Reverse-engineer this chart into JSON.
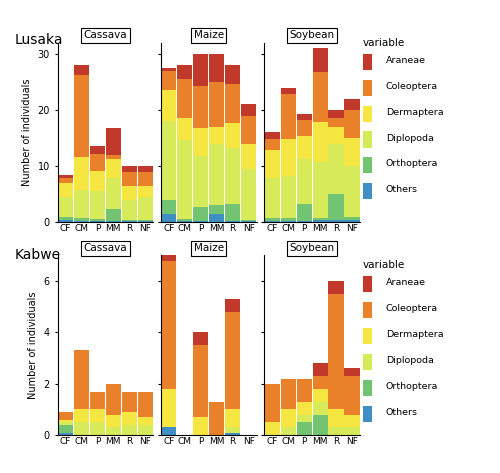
{
  "locations": [
    "Lusaka",
    "Kabwe"
  ],
  "crops": [
    "Cassava",
    "Maize",
    "Soybean"
  ],
  "treatments": [
    "CF",
    "CM",
    "P",
    "MM",
    "R",
    "NF"
  ],
  "variables": [
    "Others",
    "Orthoptera",
    "Diplopoda",
    "Dermaptera",
    "Coleoptera",
    "Araneae"
  ],
  "colors": {
    "Araneae": "#C1392B",
    "Coleoptera": "#E8812A",
    "Dermaptera": "#F5E642",
    "Diplopoda": "#D7EA5A",
    "Orthoptera": "#72C472",
    "Others": "#3F8FC4"
  },
  "lusaka": {
    "Cassava": {
      "CF": {
        "Others": 0.5,
        "Orthoptera": 0.5,
        "Diplopoda": 3.5,
        "Dermaptera": 2.5,
        "Coleoptera": 0.8,
        "Araneae": 0.7
      },
      "CM": {
        "Others": 0.3,
        "Orthoptera": 0.4,
        "Diplopoda": 5.0,
        "Dermaptera": 6.0,
        "Coleoptera": 14.5,
        "Araneae": 1.8
      },
      "P": {
        "Others": 0.2,
        "Orthoptera": 0.4,
        "Diplopoda": 5.0,
        "Dermaptera": 3.5,
        "Coleoptera": 3.0,
        "Araneae": 1.4
      },
      "MM": {
        "Others": 0.3,
        "Orthoptera": 2.0,
        "Diplopoda": 5.5,
        "Dermaptera": 3.5,
        "Coleoptera": 0.7,
        "Araneae": 4.8
      },
      "R": {
        "Others": 0.2,
        "Orthoptera": 0.3,
        "Diplopoda": 3.5,
        "Dermaptera": 2.5,
        "Coleoptera": 2.5,
        "Araneae": 1.0
      },
      "NF": {
        "Others": 0.2,
        "Orthoptera": 0.3,
        "Diplopoda": 4.0,
        "Dermaptera": 2.0,
        "Coleoptera": 2.5,
        "Araneae": 1.0
      }
    },
    "Maize": {
      "CF": {
        "Others": 1.5,
        "Orthoptera": 2.5,
        "Diplopoda": 14.0,
        "Dermaptera": 5.5,
        "Coleoptera": 3.5,
        "Araneae": 0.5
      },
      "CM": {
        "Others": 0.3,
        "Orthoptera": 0.3,
        "Diplopoda": 14.0,
        "Dermaptera": 4.0,
        "Coleoptera": 7.0,
        "Araneae": 2.4
      },
      "P": {
        "Others": 0.3,
        "Orthoptera": 2.5,
        "Diplopoda": 9.0,
        "Dermaptera": 5.0,
        "Coleoptera": 7.5,
        "Araneae": 5.7
      },
      "MM": {
        "Others": 1.5,
        "Orthoptera": 1.5,
        "Diplopoda": 11.0,
        "Dermaptera": 3.0,
        "Coleoptera": 8.0,
        "Araneae": 5.0
      },
      "R": {
        "Others": 0.2,
        "Orthoptera": 3.0,
        "Diplopoda": 10.0,
        "Dermaptera": 4.5,
        "Coleoptera": 7.0,
        "Araneae": 3.3
      },
      "NF": {
        "Others": 0.2,
        "Orthoptera": 0.3,
        "Diplopoda": 9.0,
        "Dermaptera": 4.5,
        "Coleoptera": 5.0,
        "Araneae": 2.0
      }
    },
    "Soybean": {
      "CF": {
        "Others": 0.3,
        "Orthoptera": 0.5,
        "Diplopoda": 7.0,
        "Dermaptera": 5.0,
        "Coleoptera": 2.0,
        "Araneae": 1.2
      },
      "CM": {
        "Others": 0.3,
        "Orthoptera": 0.5,
        "Diplopoda": 7.5,
        "Dermaptera": 6.5,
        "Coleoptera": 8.0,
        "Araneae": 1.2
      },
      "P": {
        "Others": 0.3,
        "Orthoptera": 3.0,
        "Diplopoda": 8.0,
        "Dermaptera": 4.0,
        "Coleoptera": 3.0,
        "Araneae": 1.0
      },
      "MM": {
        "Others": 0.5,
        "Orthoptera": 0.3,
        "Diplopoda": 10.0,
        "Dermaptera": 7.0,
        "Coleoptera": 9.0,
        "Araneae": 4.2
      },
      "R": {
        "Others": 0.5,
        "Orthoptera": 4.5,
        "Diplopoda": 9.0,
        "Dermaptera": 3.0,
        "Coleoptera": 1.5,
        "Araneae": 1.5
      },
      "NF": {
        "Others": 0.5,
        "Orthoptera": 0.5,
        "Diplopoda": 9.0,
        "Dermaptera": 5.0,
        "Coleoptera": 5.0,
        "Araneae": 2.0
      }
    }
  },
  "kabwe": {
    "Cassava": {
      "CF": {
        "Others": 0.1,
        "Orthoptera": 0.3,
        "Diplopoda": 0.1,
        "Dermaptera": 0.1,
        "Coleoptera": 0.3,
        "Araneae": 0.0
      },
      "CM": {
        "Others": 0.0,
        "Orthoptera": 0.0,
        "Diplopoda": 0.5,
        "Dermaptera": 0.5,
        "Coleoptera": 2.3,
        "Araneae": 0.0
      },
      "P": {
        "Others": 0.0,
        "Orthoptera": 0.0,
        "Diplopoda": 0.5,
        "Dermaptera": 0.5,
        "Coleoptera": 0.7,
        "Araneae": 0.0
      },
      "MM": {
        "Others": 0.0,
        "Orthoptera": 0.0,
        "Diplopoda": 0.3,
        "Dermaptera": 0.5,
        "Coleoptera": 1.2,
        "Araneae": 0.0
      },
      "R": {
        "Others": 0.0,
        "Orthoptera": 0.0,
        "Diplopoda": 0.4,
        "Dermaptera": 0.5,
        "Coleoptera": 0.8,
        "Araneae": 0.0
      },
      "NF": {
        "Others": 0.0,
        "Orthoptera": 0.0,
        "Diplopoda": 0.4,
        "Dermaptera": 0.3,
        "Coleoptera": 1.0,
        "Araneae": 0.0
      }
    },
    "Maize": {
      "CF": {
        "Others": 0.3,
        "Orthoptera": 0.0,
        "Diplopoda": 0.0,
        "Dermaptera": 1.5,
        "Coleoptera": 5.0,
        "Araneae": 0.2
      },
      "CM": {
        "Others": 0.0,
        "Orthoptera": 0.0,
        "Diplopoda": 0.0,
        "Dermaptera": 0.0,
        "Coleoptera": 0.0,
        "Araneae": 0.0
      },
      "P": {
        "Others": 0.0,
        "Orthoptera": 0.0,
        "Diplopoda": 0.0,
        "Dermaptera": 0.7,
        "Coleoptera": 2.8,
        "Araneae": 0.5
      },
      "MM": {
        "Others": 0.0,
        "Orthoptera": 0.0,
        "Diplopoda": 0.0,
        "Dermaptera": 0.0,
        "Coleoptera": 1.3,
        "Araneae": 0.0
      },
      "R": {
        "Others": 0.1,
        "Orthoptera": 0.0,
        "Diplopoda": 0.2,
        "Dermaptera": 0.7,
        "Coleoptera": 3.8,
        "Araneae": 0.5
      },
      "NF": {
        "Others": 0.0,
        "Orthoptera": 0.0,
        "Diplopoda": 0.0,
        "Dermaptera": 0.0,
        "Coleoptera": 0.0,
        "Araneae": 0.0
      }
    },
    "Soybean": {
      "CF": {
        "Others": 0.0,
        "Orthoptera": 0.0,
        "Diplopoda": 0.0,
        "Dermaptera": 0.5,
        "Coleoptera": 1.5,
        "Araneae": 0.0
      },
      "CM": {
        "Others": 0.0,
        "Orthoptera": 0.0,
        "Diplopoda": 0.3,
        "Dermaptera": 0.7,
        "Coleoptera": 1.2,
        "Araneae": 0.0
      },
      "P": {
        "Others": 0.0,
        "Orthoptera": 0.5,
        "Diplopoda": 0.3,
        "Dermaptera": 0.5,
        "Coleoptera": 0.9,
        "Araneae": 0.0
      },
      "MM": {
        "Others": 0.0,
        "Orthoptera": 0.8,
        "Diplopoda": 0.5,
        "Dermaptera": 0.5,
        "Coleoptera": 0.5,
        "Araneae": 0.5
      },
      "R": {
        "Others": 0.0,
        "Orthoptera": 0.0,
        "Diplopoda": 0.3,
        "Dermaptera": 0.7,
        "Coleoptera": 4.5,
        "Araneae": 0.5
      },
      "NF": {
        "Others": 0.0,
        "Orthoptera": 0.0,
        "Diplopoda": 0.3,
        "Dermaptera": 0.5,
        "Coleoptera": 1.5,
        "Araneae": 0.3
      }
    }
  },
  "ylims": {
    "Lusaka": [
      0,
      32
    ],
    "Kabwe": [
      0,
      7
    ]
  },
  "yticks": {
    "Lusaka": [
      0,
      10,
      20,
      30
    ],
    "Kabwe": [
      0,
      2,
      4,
      6
    ]
  },
  "legend_vars": [
    "Araneae",
    "Coleoptera",
    "Dermaptera",
    "Diplopoda",
    "Orthoptera",
    "Others"
  ]
}
